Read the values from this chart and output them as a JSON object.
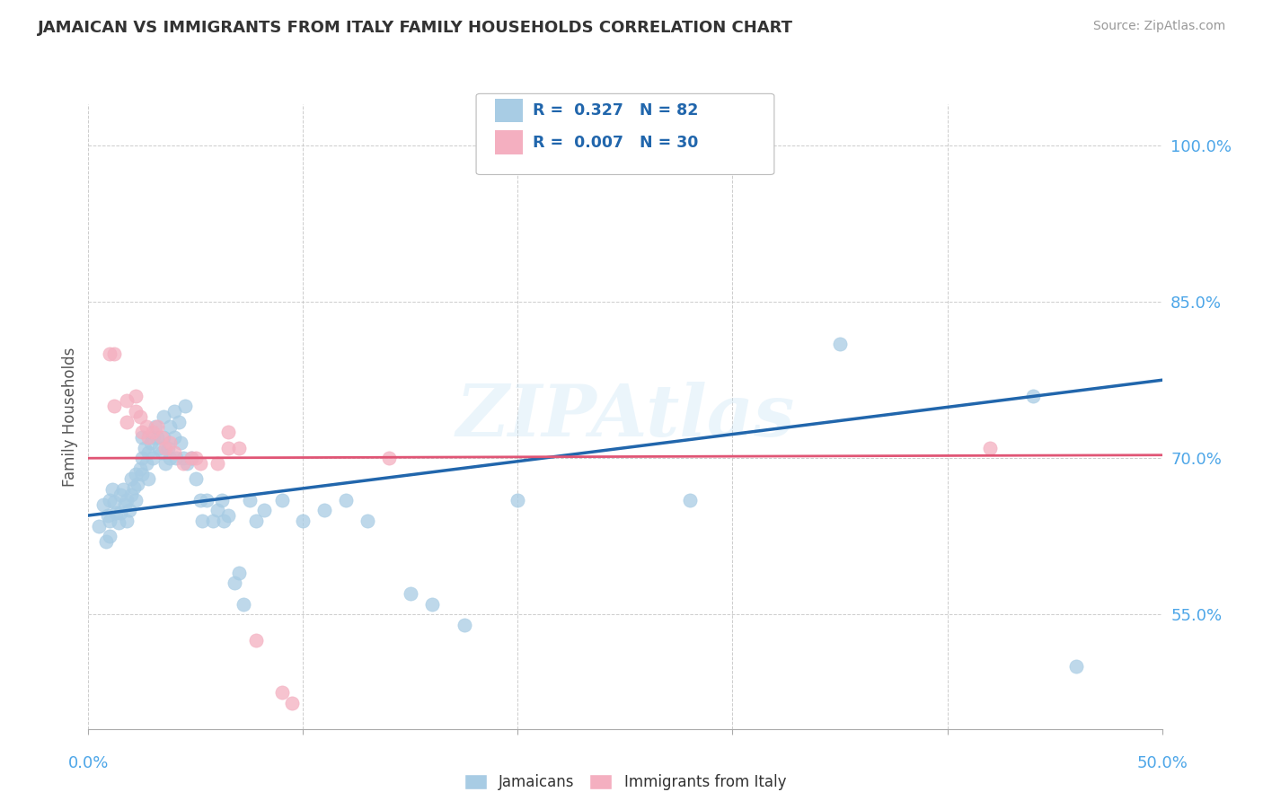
{
  "title": "JAMAICAN VS IMMIGRANTS FROM ITALY FAMILY HOUSEHOLDS CORRELATION CHART",
  "source_text": "Source: ZipAtlas.com",
  "ylabel": "Family Households",
  "xlim": [
    0.0,
    0.5
  ],
  "ylim": [
    0.44,
    1.04
  ],
  "yticks": [
    0.55,
    0.7,
    0.85,
    1.0
  ],
  "ytick_labels": [
    "55.0%",
    "70.0%",
    "85.0%",
    "100.0%"
  ],
  "xtick_labels_ends": [
    "0.0%",
    "50.0%"
  ],
  "legend_r1": "R =  0.327   N = 82",
  "legend_r2": "R =  0.007   N = 30",
  "watermark": "ZIPAtlas",
  "blue_color": "#a8cce4",
  "pink_color": "#f4afc0",
  "blue_line_color": "#2166ac",
  "pink_line_color": "#e05575",
  "title_color": "#333333",
  "axis_label_color": "#4da6e8",
  "legend_text_color": "#2166ac",
  "blue_scatter": [
    [
      0.005,
      0.635
    ],
    [
      0.007,
      0.655
    ],
    [
      0.008,
      0.62
    ],
    [
      0.009,
      0.645
    ],
    [
      0.01,
      0.66
    ],
    [
      0.01,
      0.64
    ],
    [
      0.01,
      0.625
    ],
    [
      0.011,
      0.67
    ],
    [
      0.012,
      0.658
    ],
    [
      0.013,
      0.648
    ],
    [
      0.014,
      0.638
    ],
    [
      0.015,
      0.665
    ],
    [
      0.015,
      0.648
    ],
    [
      0.016,
      0.67
    ],
    [
      0.017,
      0.655
    ],
    [
      0.018,
      0.66
    ],
    [
      0.018,
      0.64
    ],
    [
      0.019,
      0.65
    ],
    [
      0.02,
      0.68
    ],
    [
      0.02,
      0.665
    ],
    [
      0.021,
      0.672
    ],
    [
      0.022,
      0.685
    ],
    [
      0.022,
      0.66
    ],
    [
      0.023,
      0.675
    ],
    [
      0.024,
      0.69
    ],
    [
      0.025,
      0.72
    ],
    [
      0.025,
      0.7
    ],
    [
      0.025,
      0.685
    ],
    [
      0.026,
      0.71
    ],
    [
      0.027,
      0.695
    ],
    [
      0.028,
      0.705
    ],
    [
      0.028,
      0.68
    ],
    [
      0.029,
      0.715
    ],
    [
      0.03,
      0.72
    ],
    [
      0.03,
      0.7
    ],
    [
      0.031,
      0.73
    ],
    [
      0.032,
      0.72
    ],
    [
      0.033,
      0.71
    ],
    [
      0.034,
      0.705
    ],
    [
      0.035,
      0.74
    ],
    [
      0.035,
      0.72
    ],
    [
      0.036,
      0.695
    ],
    [
      0.037,
      0.71
    ],
    [
      0.038,
      0.73
    ],
    [
      0.038,
      0.7
    ],
    [
      0.04,
      0.745
    ],
    [
      0.04,
      0.72
    ],
    [
      0.041,
      0.7
    ],
    [
      0.042,
      0.735
    ],
    [
      0.043,
      0.715
    ],
    [
      0.044,
      0.7
    ],
    [
      0.045,
      0.75
    ],
    [
      0.046,
      0.695
    ],
    [
      0.048,
      0.7
    ],
    [
      0.05,
      0.68
    ],
    [
      0.052,
      0.66
    ],
    [
      0.053,
      0.64
    ],
    [
      0.055,
      0.66
    ],
    [
      0.058,
      0.64
    ],
    [
      0.06,
      0.65
    ],
    [
      0.062,
      0.66
    ],
    [
      0.063,
      0.64
    ],
    [
      0.065,
      0.645
    ],
    [
      0.068,
      0.58
    ],
    [
      0.07,
      0.59
    ],
    [
      0.072,
      0.56
    ],
    [
      0.075,
      0.66
    ],
    [
      0.078,
      0.64
    ],
    [
      0.082,
      0.65
    ],
    [
      0.09,
      0.66
    ],
    [
      0.1,
      0.64
    ],
    [
      0.11,
      0.65
    ],
    [
      0.12,
      0.66
    ],
    [
      0.13,
      0.64
    ],
    [
      0.15,
      0.57
    ],
    [
      0.16,
      0.56
    ],
    [
      0.175,
      0.54
    ],
    [
      0.2,
      0.66
    ],
    [
      0.28,
      0.66
    ],
    [
      0.35,
      0.81
    ],
    [
      0.44,
      0.76
    ],
    [
      0.46,
      0.5
    ]
  ],
  "pink_scatter": [
    [
      0.01,
      0.8
    ],
    [
      0.012,
      0.8
    ],
    [
      0.012,
      0.75
    ],
    [
      0.018,
      0.755
    ],
    [
      0.018,
      0.735
    ],
    [
      0.022,
      0.745
    ],
    [
      0.022,
      0.76
    ],
    [
      0.024,
      0.74
    ],
    [
      0.025,
      0.725
    ],
    [
      0.027,
      0.73
    ],
    [
      0.028,
      0.72
    ],
    [
      0.03,
      0.725
    ],
    [
      0.032,
      0.73
    ],
    [
      0.034,
      0.72
    ],
    [
      0.036,
      0.71
    ],
    [
      0.038,
      0.715
    ],
    [
      0.04,
      0.705
    ],
    [
      0.044,
      0.695
    ],
    [
      0.048,
      0.7
    ],
    [
      0.05,
      0.7
    ],
    [
      0.052,
      0.695
    ],
    [
      0.06,
      0.695
    ],
    [
      0.065,
      0.71
    ],
    [
      0.065,
      0.725
    ],
    [
      0.07,
      0.71
    ],
    [
      0.078,
      0.525
    ],
    [
      0.09,
      0.475
    ],
    [
      0.095,
      0.465
    ],
    [
      0.14,
      0.7
    ],
    [
      0.42,
      0.71
    ]
  ],
  "blue_trendline_x": [
    0.0,
    0.5
  ],
  "blue_trendline_y": [
    0.645,
    0.775
  ],
  "pink_trendline_x": [
    0.0,
    0.5
  ],
  "pink_trendline_y": [
    0.7,
    0.703
  ]
}
